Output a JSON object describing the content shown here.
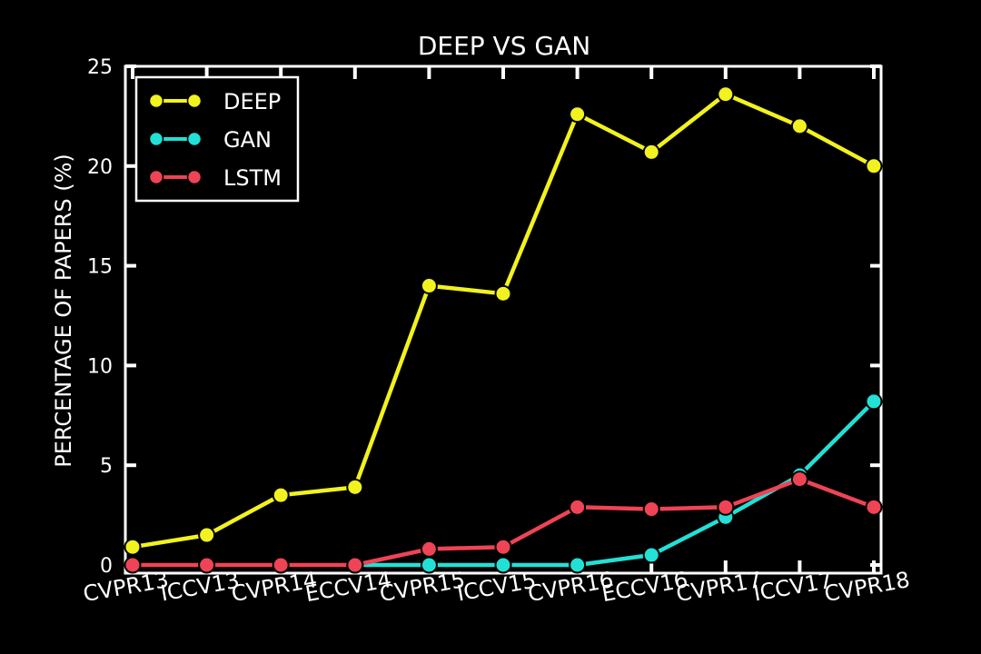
{
  "chart_data": {
    "type": "line",
    "title": "DEEP VS GAN",
    "xlabel": "",
    "ylabel": "PERCENTAGE OF PAPERS (%)",
    "categories": [
      "CVPR13",
      "ICCV13",
      "CVPR14",
      "ECCV14",
      "CVPR15",
      "ICCV15",
      "CVPR16",
      "ECCV16",
      "CVPR17",
      "ICCV17",
      "CVPR18"
    ],
    "ylim": [
      0,
      25
    ],
    "yticks": [
      0,
      5,
      10,
      15,
      20,
      25
    ],
    "grid": false,
    "legend_position": "top-left",
    "series": [
      {
        "name": "DEEP",
        "color": "#f2f21e",
        "values": [
          0.9,
          1.5,
          3.5,
          3.9,
          14.0,
          13.6,
          22.6,
          20.7,
          23.6,
          22.0,
          20.0
        ]
      },
      {
        "name": "GAN",
        "color": "#22e0d6",
        "values": [
          null,
          null,
          null,
          0.0,
          0.0,
          0.0,
          0.0,
          0.5,
          2.4,
          4.5,
          8.2
        ]
      },
      {
        "name": "LSTM",
        "color": "#ee4455",
        "values": [
          0.0,
          0.0,
          0.0,
          0.0,
          0.8,
          0.9,
          2.9,
          2.8,
          2.9,
          4.3,
          2.9
        ]
      }
    ]
  }
}
